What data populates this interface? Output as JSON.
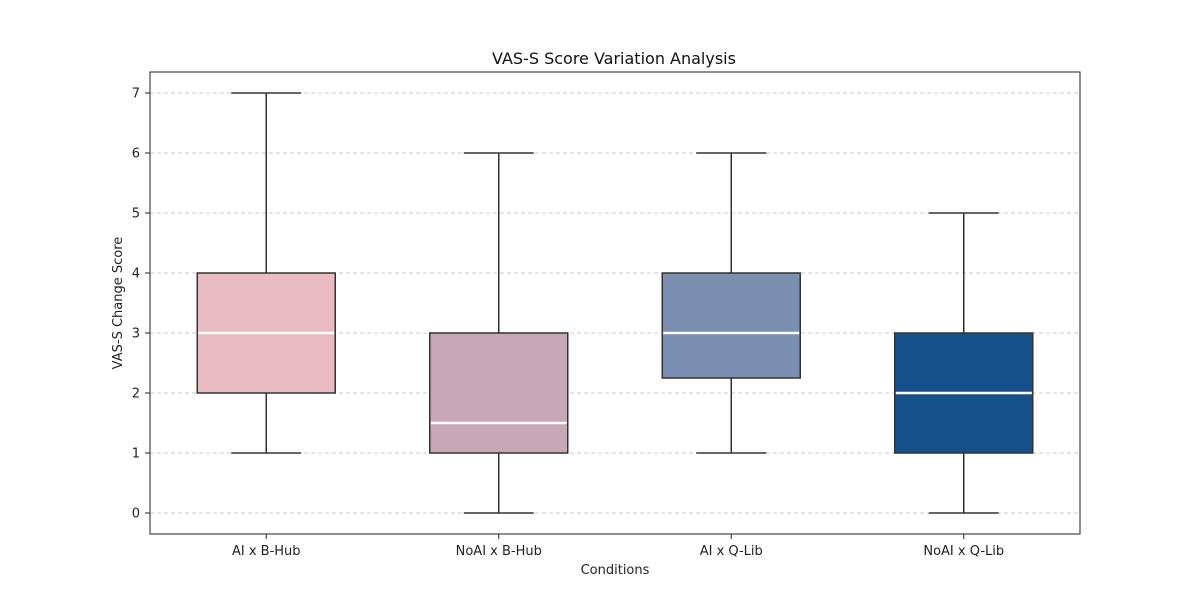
{
  "chart_data": {
    "type": "box",
    "title": "VAS-S Score Variation Analysis",
    "xlabel": "Conditions",
    "ylabel": "VAS-S Change Score",
    "ylim": [
      -0.35,
      7.35
    ],
    "yticks": [
      0,
      1,
      2,
      3,
      4,
      5,
      6,
      7
    ],
    "grid": "horizontal-dashed",
    "categories": [
      "AI x B-Hub",
      "NoAI x B-Hub",
      "AI x Q-Lib",
      "NoAI x Q-Lib"
    ],
    "series": [
      {
        "category": "AI x B-Hub",
        "min": 1,
        "q1": 2,
        "median": 3,
        "q3": 4,
        "max": 7,
        "color": "#ebbbc3"
      },
      {
        "category": "NoAI x B-Hub",
        "min": 0,
        "q1": 1,
        "median": 1.5,
        "q3": 3,
        "max": 6,
        "color": "#c8a8b6"
      },
      {
        "category": "AI x Q-Lib",
        "min": 1,
        "q1": 2.25,
        "median": 3,
        "q3": 4,
        "max": 6,
        "color": "#7a8fb1"
      },
      {
        "category": "NoAI x Q-Lib",
        "min": 0,
        "q1": 1,
        "median": 2,
        "q3": 3,
        "max": 5,
        "color": "#16508a"
      }
    ]
  }
}
